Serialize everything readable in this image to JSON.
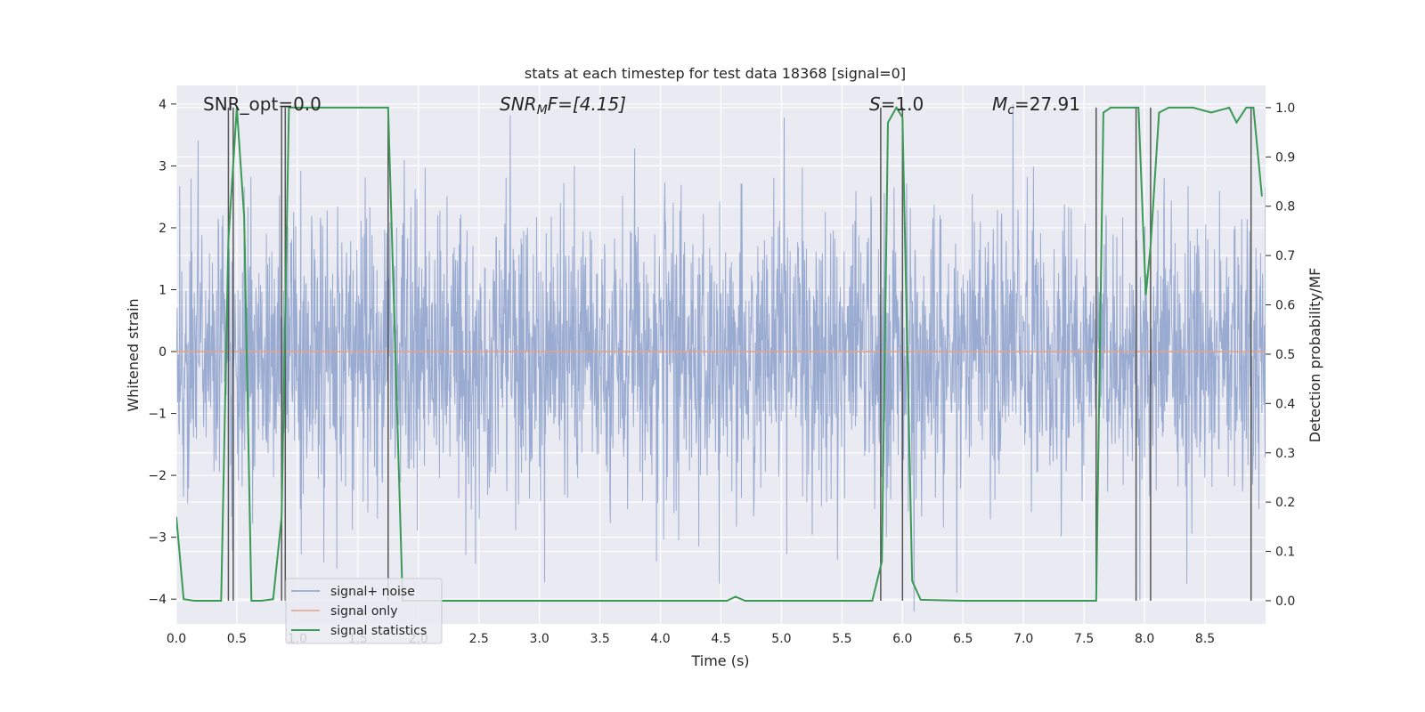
{
  "chart_data": {
    "type": "line",
    "title": "stats at each timestep for test data 18368 [signal=0]",
    "xlabel": "Time (s)",
    "ylabel": "Whitened strain",
    "y2label": "Detection probability/MF",
    "xlim": [
      0.0,
      9.0
    ],
    "ylim": [
      -4.4,
      4.3
    ],
    "y2lim": [
      -0.047,
      1.045
    ],
    "xticks": [
      "0.0",
      "0.5",
      "1.0",
      "1.5",
      "2.0",
      "2.5",
      "3.0",
      "3.5",
      "4.0",
      "4.5",
      "5.0",
      "5.5",
      "6.0",
      "6.5",
      "7.0",
      "7.5",
      "8.0",
      "8.5"
    ],
    "yticks": [
      "4",
      "3",
      "2",
      "1",
      "0",
      "−1",
      "−2",
      "−3",
      "−4"
    ],
    "y2ticks": [
      "1.0",
      "0.9",
      "0.8",
      "0.7",
      "0.6",
      "0.5",
      "0.4",
      "0.3",
      "0.2",
      "0.1",
      "0.0"
    ],
    "grid": true,
    "legend_position": "lower-left",
    "annotations": [
      {
        "text": "SNR_opt=0.0",
        "x": 0.2
      },
      {
        "text": "SNR_MF=[4.15]",
        "x": 2.6
      },
      {
        "text": "S=1.0",
        "x": 5.6
      },
      {
        "text": "M_c=27.91",
        "x": 6.6
      }
    ],
    "annotation_parts": {
      "snr_opt": "SNR_opt=0.0",
      "snr_mf_base": "SNR",
      "snr_mf_sub": "M",
      "snr_mf_rest": "F=[4.15]",
      "s_sym": "S",
      "s_rest": "=1.0",
      "mc_base": "M",
      "mc_sub": "c",
      "mc_rest": "=27.91"
    },
    "series": [
      {
        "name": "signal+ noise",
        "axis": "left",
        "color": "#8ca0cb",
        "kind": "noise",
        "amplitude_sigma": 1.15,
        "description": "whitened strain noise band, approx ±2.5 with spikes to ±4"
      },
      {
        "name": "signal only",
        "axis": "left",
        "color": "#e6a28a",
        "x": [
          0.0,
          9.0
        ],
        "y": [
          0.0,
          0.0
        ]
      },
      {
        "name": "signal statistics",
        "axis": "right",
        "color": "#3a9a55",
        "x": [
          0.0,
          0.06,
          0.15,
          0.37,
          0.43,
          0.5,
          0.56,
          0.62,
          0.7,
          0.8,
          0.87,
          0.93,
          1.0,
          1.2,
          1.4,
          1.6,
          1.75,
          1.87,
          2.0,
          3.0,
          4.0,
          4.55,
          4.62,
          4.7,
          5.0,
          5.5,
          5.75,
          5.83,
          5.88,
          5.95,
          6.0,
          6.08,
          6.15,
          6.5,
          7.0,
          7.6,
          7.66,
          7.72,
          7.95,
          8.01,
          8.05,
          8.12,
          8.2,
          8.4,
          8.55,
          8.7,
          8.76,
          8.84,
          8.9,
          8.97
        ],
        "y": [
          0.17,
          0.003,
          0.0,
          0.0,
          0.73,
          1.0,
          0.78,
          0.0,
          0.0,
          0.003,
          0.17,
          1.0,
          1.0,
          1.0,
          1.0,
          1.0,
          1.0,
          0.0,
          0.0,
          0.0,
          0.0,
          0.0,
          0.008,
          0.0,
          0.0,
          0.0,
          0.0,
          0.08,
          0.97,
          1.0,
          0.98,
          0.04,
          0.002,
          0.0,
          0.0,
          0.0,
          0.99,
          1.0,
          1.0,
          0.62,
          0.72,
          0.99,
          1.0,
          1.0,
          0.99,
          1.0,
          0.97,
          1.0,
          1.0,
          0.82
        ]
      }
    ],
    "vlines": {
      "color": "#555555",
      "x": [
        0.43,
        0.47,
        0.87,
        0.9,
        1.75,
        5.82,
        6.0,
        7.6,
        7.93,
        8.05,
        8.88
      ],
      "y2_top": 1.0
    }
  }
}
